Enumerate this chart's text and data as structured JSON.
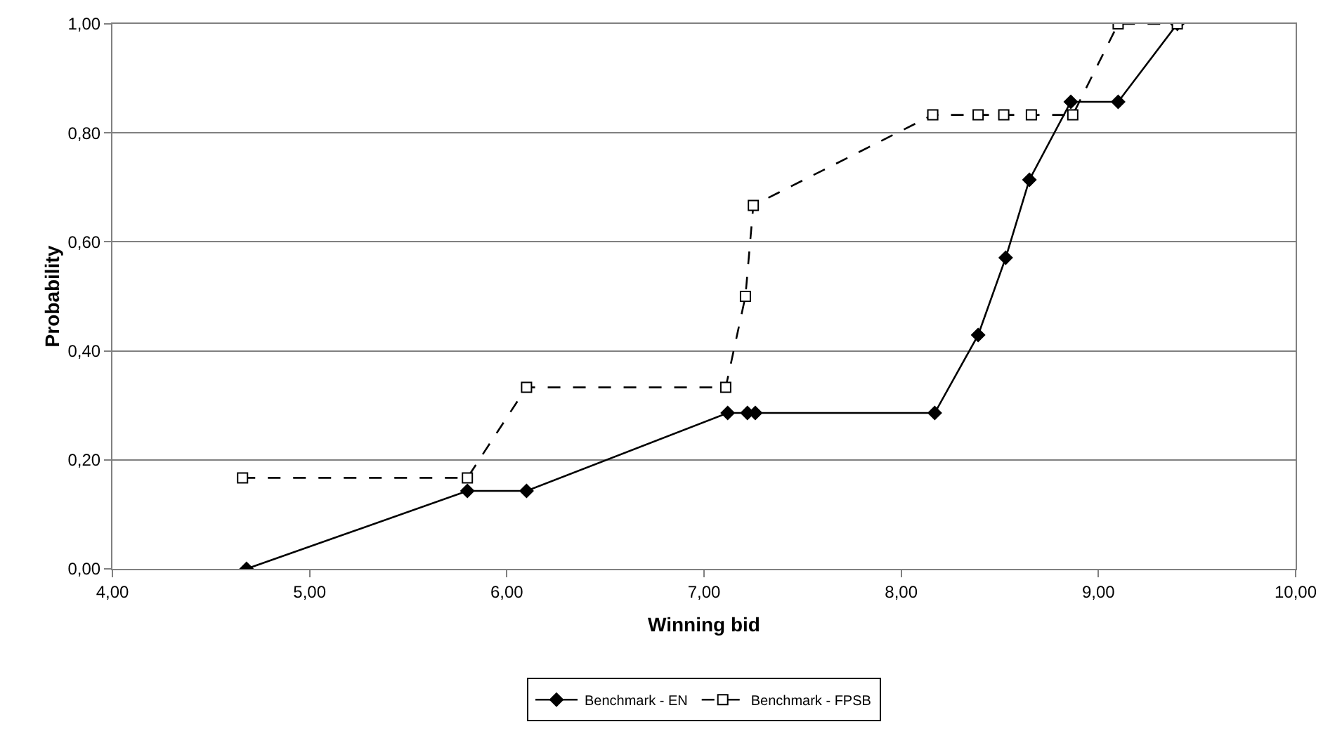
{
  "chart_data": {
    "type": "line",
    "xlabel": "Winning bid",
    "ylabel": "Probability",
    "xlim": [
      4,
      10
    ],
    "xticks": [
      {
        "value": 4,
        "label": "4,00"
      },
      {
        "value": 5,
        "label": "5,00"
      },
      {
        "value": 6,
        "label": "6,00"
      },
      {
        "value": 7,
        "label": "7,00"
      },
      {
        "value": 8,
        "label": "8,00"
      },
      {
        "value": 9,
        "label": "9,00"
      },
      {
        "value": 10,
        "label": "10,00"
      }
    ],
    "ylim": [
      0,
      1
    ],
    "yticks": [
      {
        "value": 0,
        "label": "0,00"
      },
      {
        "value": 0.2,
        "label": "0,20"
      },
      {
        "value": 0.4,
        "label": "0,40"
      },
      {
        "value": 0.6,
        "label": "0,60"
      },
      {
        "value": 0.8,
        "label": "0,80"
      },
      {
        "value": 1,
        "label": "1,00"
      }
    ],
    "grid": "y",
    "legend": "bottom",
    "series": [
      {
        "name": "Benchmark - EN",
        "color": "#000000",
        "marker": "diamond",
        "line_style": "solid",
        "x": [
          4.68,
          5.8,
          6.1,
          7.12,
          7.22,
          7.26,
          8.17,
          8.39,
          8.53,
          8.65,
          8.86,
          9.1,
          9.4
        ],
        "values": [
          0,
          0.143,
          0.143,
          0.286,
          0.286,
          0.286,
          0.286,
          0.429,
          0.571,
          0.714,
          0.857,
          0.857,
          1
        ]
      },
      {
        "name": "Benchmark - FPSB",
        "color": "#000000",
        "marker": "square",
        "line_style": "dashed",
        "x": [
          4.66,
          5.8,
          6.1,
          7.11,
          7.21,
          7.25,
          8.16,
          8.39,
          8.52,
          8.66,
          8.87,
          9.1,
          9.4
        ],
        "values": [
          0.167,
          0.167,
          0.333,
          0.333,
          0.5,
          0.667,
          0.833,
          0.833,
          0.833,
          0.833,
          0.833,
          1,
          1
        ]
      }
    ]
  }
}
